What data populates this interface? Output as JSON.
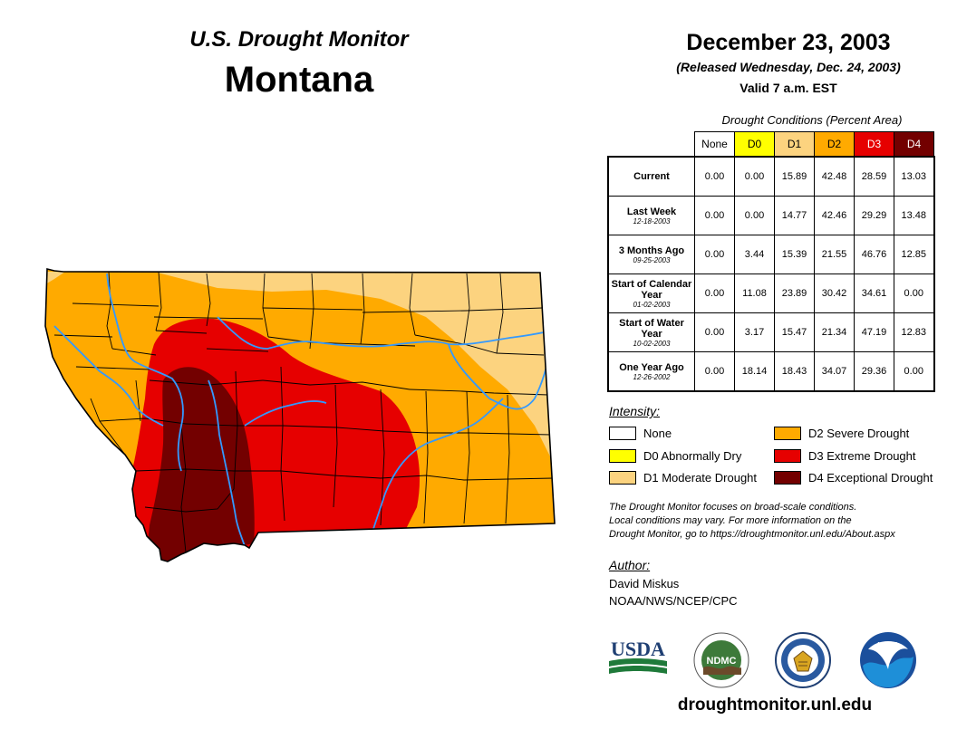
{
  "header": {
    "monitor_title": "U.S. Drought Monitor",
    "state": "Montana",
    "date": "December 23, 2003",
    "released": "(Released Wednesday, Dec. 24, 2003)",
    "valid": "Valid 7 a.m. EST"
  },
  "table": {
    "caption": "Drought Conditions (Percent Area)",
    "columns": [
      "None",
      "D0",
      "D1",
      "D2",
      "D3",
      "D4"
    ],
    "column_colors": [
      "#ffffff",
      "#ffff00",
      "#fcd37f",
      "#ffaa00",
      "#e60000",
      "#730000"
    ],
    "column_text_colors": [
      "#000000",
      "#000000",
      "#000000",
      "#000000",
      "#ffffff",
      "#ffffff"
    ],
    "rows": [
      {
        "label": "Current",
        "date": "",
        "values": [
          "0.00",
          "0.00",
          "15.89",
          "42.48",
          "28.59",
          "13.03"
        ]
      },
      {
        "label": "Last Week",
        "date": "12-18-2003",
        "values": [
          "0.00",
          "0.00",
          "14.77",
          "42.46",
          "29.29",
          "13.48"
        ]
      },
      {
        "label": "3 Months Ago",
        "date": "09-25-2003",
        "values": [
          "0.00",
          "3.44",
          "15.39",
          "21.55",
          "46.76",
          "12.85"
        ]
      },
      {
        "label": "Start of Calendar Year",
        "date": "01-02-2003",
        "values": [
          "0.00",
          "11.08",
          "23.89",
          "30.42",
          "34.61",
          "0.00"
        ]
      },
      {
        "label": "Start of Water Year",
        "date": "10-02-2003",
        "values": [
          "0.00",
          "3.17",
          "15.47",
          "21.34",
          "47.19",
          "12.83"
        ]
      },
      {
        "label": "One Year Ago",
        "date": "12-26-2002",
        "values": [
          "0.00",
          "18.14",
          "18.43",
          "34.07",
          "29.36",
          "0.00"
        ]
      }
    ]
  },
  "legend": {
    "title": "Intensity:",
    "items": [
      {
        "label": "None",
        "color": "#ffffff"
      },
      {
        "label": "D0 Abnormally Dry",
        "color": "#ffff00"
      },
      {
        "label": "D1 Moderate Drought",
        "color": "#fcd37f"
      },
      {
        "label": "D2 Severe Drought",
        "color": "#ffaa00"
      },
      {
        "label": "D3 Extreme Drought",
        "color": "#e60000"
      },
      {
        "label": "D4 Exceptional Drought",
        "color": "#730000"
      }
    ]
  },
  "note": {
    "line1": "The Drought Monitor focuses on broad-scale conditions.",
    "line2": "Local conditions may vary. For more information on the",
    "line3": "Drought Monitor, go to https://droughtmonitor.unl.edu/About.aspx"
  },
  "author": {
    "label": "Author:",
    "name": "David Miskus",
    "org": "NOAA/NWS/NCEP/CPC"
  },
  "logos": {
    "usda": "USDA",
    "ndmc": "NDMC",
    "noaa": "NOAA"
  },
  "website": "droughtmonitor.unl.edu",
  "map_colors": {
    "d1": "#fcd37f",
    "d2": "#ffaa00",
    "d3": "#e60000",
    "d4": "#730000",
    "river": "#3399ff",
    "county": "#000000"
  }
}
